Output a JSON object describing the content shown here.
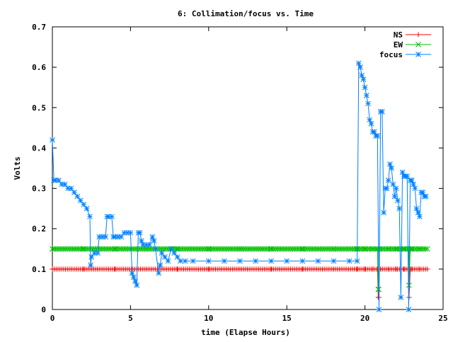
{
  "chart_data": {
    "type": "line",
    "title": "6: Collimation/focus vs. Time",
    "xlabel": "time (Elapse Hours)",
    "ylabel": "Volts",
    "xlim": [
      0,
      25
    ],
    "ylim": [
      0,
      0.7
    ],
    "xticks": [
      "0",
      "5",
      "10",
      "15",
      "20",
      "25"
    ],
    "yticks": [
      "0",
      "0.1",
      "0.2",
      "0.3",
      "0.4",
      "0.5",
      "0.6",
      "0.7"
    ],
    "grid": false,
    "legend_position": "top-right",
    "series": [
      {
        "name": "NS",
        "color": "#ff0000",
        "marker": "plus",
        "x": [
          0,
          2,
          4,
          6,
          8,
          10,
          12,
          14,
          16,
          18,
          19.5,
          20,
          20.5,
          20.8,
          20.85,
          20.9,
          21.0,
          21.5,
          22.0,
          22.5,
          22.8,
          22.82,
          22.9,
          23.0,
          23.5,
          24.0
        ],
        "y": [
          0.1,
          0.1,
          0.1,
          0.1,
          0.1,
          0.1,
          0.1,
          0.1,
          0.1,
          0.1,
          0.1,
          0.1,
          0.1,
          0.1,
          0.03,
          0.1,
          0.1,
          0.1,
          0.1,
          0.1,
          0.1,
          0.03,
          0.1,
          0.1,
          0.1,
          0.1
        ]
      },
      {
        "name": "EW",
        "color": "#00c000",
        "marker": "x",
        "x": [
          0,
          2,
          4,
          6,
          8,
          10,
          12,
          14,
          16,
          18,
          19.5,
          20,
          20.5,
          20.8,
          20.85,
          20.9,
          21.0,
          21.5,
          22.0,
          22.5,
          22.8,
          22.82,
          22.9,
          23.0,
          23.5,
          24.0
        ],
        "y": [
          0.15,
          0.15,
          0.15,
          0.15,
          0.15,
          0.15,
          0.15,
          0.15,
          0.15,
          0.15,
          0.15,
          0.15,
          0.15,
          0.15,
          0.05,
          0.15,
          0.15,
          0.15,
          0.15,
          0.15,
          0.15,
          0.06,
          0.15,
          0.15,
          0.15,
          0.15
        ]
      },
      {
        "name": "focus",
        "color": "#0080ff",
        "marker": "star",
        "x": [
          0.0,
          0.1,
          0.2,
          0.4,
          0.6,
          0.8,
          1.0,
          1.2,
          1.4,
          1.6,
          1.8,
          2.0,
          2.2,
          2.4,
          2.45,
          2.5,
          2.7,
          2.9,
          3.0,
          3.2,
          3.4,
          3.5,
          3.6,
          3.8,
          3.9,
          4.0,
          4.2,
          4.4,
          4.6,
          4.8,
          5.0,
          5.1,
          5.2,
          5.3,
          5.4,
          5.5,
          5.6,
          5.7,
          5.8,
          6.0,
          6.2,
          6.4,
          6.5,
          6.6,
          6.8,
          6.9,
          7.0,
          7.2,
          7.4,
          7.6,
          7.8,
          8.0,
          8.2,
          8.5,
          9.0,
          10.0,
          11.0,
          12.0,
          13.0,
          14.0,
          15.0,
          16.0,
          17.0,
          18.0,
          19.0,
          19.5,
          19.6,
          19.7,
          19.8,
          19.9,
          20.0,
          20.1,
          20.2,
          20.3,
          20.4,
          20.5,
          20.6,
          20.7,
          20.8,
          20.9,
          21.0,
          21.1,
          21.2,
          21.3,
          21.4,
          21.5,
          21.6,
          21.7,
          21.8,
          21.9,
          22.0,
          22.1,
          22.2,
          22.3,
          22.4,
          22.5,
          22.6,
          22.7,
          22.8,
          22.9,
          23.0,
          23.1,
          23.2,
          23.3,
          23.4,
          23.5,
          23.6,
          23.7,
          23.8,
          23.9
        ],
        "y": [
          0.42,
          0.32,
          0.32,
          0.32,
          0.31,
          0.31,
          0.3,
          0.3,
          0.29,
          0.28,
          0.27,
          0.26,
          0.25,
          0.23,
          0.11,
          0.13,
          0.14,
          0.14,
          0.18,
          0.18,
          0.18,
          0.23,
          0.23,
          0.23,
          0.18,
          0.18,
          0.18,
          0.18,
          0.19,
          0.19,
          0.19,
          0.09,
          0.08,
          0.07,
          0.06,
          0.19,
          0.19,
          0.17,
          0.16,
          0.16,
          0.16,
          0.18,
          0.17,
          0.15,
          0.09,
          0.11,
          0.14,
          0.13,
          0.12,
          0.15,
          0.14,
          0.13,
          0.12,
          0.12,
          0.12,
          0.12,
          0.12,
          0.12,
          0.12,
          0.12,
          0.12,
          0.12,
          0.12,
          0.12,
          0.12,
          0.12,
          0.61,
          0.6,
          0.58,
          0.57,
          0.55,
          0.53,
          0.51,
          0.47,
          0.46,
          0.44,
          0.44,
          0.43,
          0.43,
          0.0,
          0.49,
          0.49,
          0.24,
          0.3,
          0.3,
          0.32,
          0.36,
          0.35,
          0.31,
          0.28,
          0.3,
          0.27,
          0.25,
          0.03,
          0.34,
          0.33,
          0.33,
          0.33,
          0.0,
          0.32,
          0.32,
          0.31,
          0.3,
          0.25,
          0.24,
          0.23,
          0.29,
          0.29,
          0.28,
          0.28
        ]
      }
    ]
  }
}
